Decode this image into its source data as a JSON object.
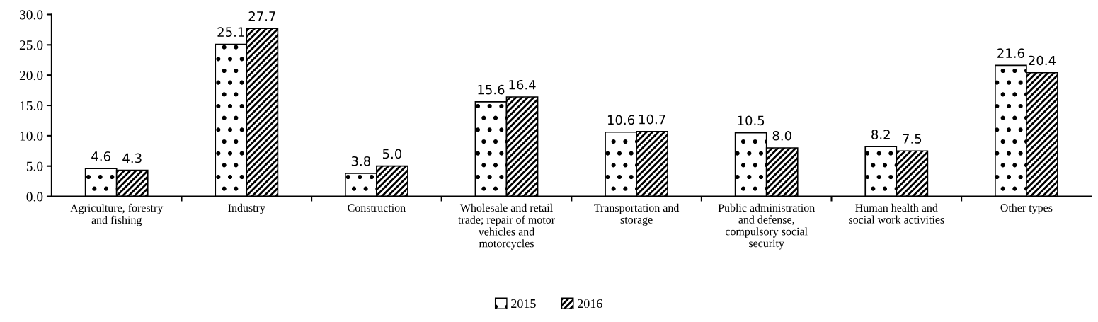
{
  "chart_data": {
    "type": "bar",
    "categories": [
      "Agriculture, forestry\nand fishing",
      "Industry",
      "Construction",
      "Wholesale and retail\ntrade; repair of motor\nvehicles and\nmotorcycles",
      "Transportation and\nstorage",
      "Public administration\nand defense,\ncompulsory social\nsecurity",
      "Human health and\nsocial work activities",
      "Other types"
    ],
    "series": [
      {
        "name": "2015",
        "color": "#000000",
        "values": [
          4.6,
          25.1,
          3.8,
          15.6,
          10.6,
          10.5,
          8.2,
          21.6
        ],
        "value_labels": [
          "4.6",
          "25.1",
          "3.8",
          "15.6",
          "10.6",
          "10.5",
          "8.2",
          "21.6"
        ]
      },
      {
        "name": "2016",
        "color": "#000000",
        "values": [
          4.3,
          27.7,
          5.0,
          16.4,
          10.7,
          8.0,
          7.5,
          20.4
        ],
        "value_labels": [
          "4.3",
          "27.7",
          "5.0",
          "16.4",
          "10.7",
          "8.0",
          "7.5",
          "20.4"
        ]
      }
    ],
    "ylim": [
      0,
      30
    ],
    "yticks": [
      {
        "value": 0,
        "label": "0.0"
      },
      {
        "value": 5,
        "label": "5.0"
      },
      {
        "value": 10,
        "label": "10.0"
      },
      {
        "value": 15,
        "label": "15.0"
      },
      {
        "value": 20,
        "label": "20.0"
      },
      {
        "value": 25,
        "label": "25.0"
      },
      {
        "value": 30,
        "label": "30.0"
      }
    ],
    "legend": "bottom",
    "grid": false
  }
}
